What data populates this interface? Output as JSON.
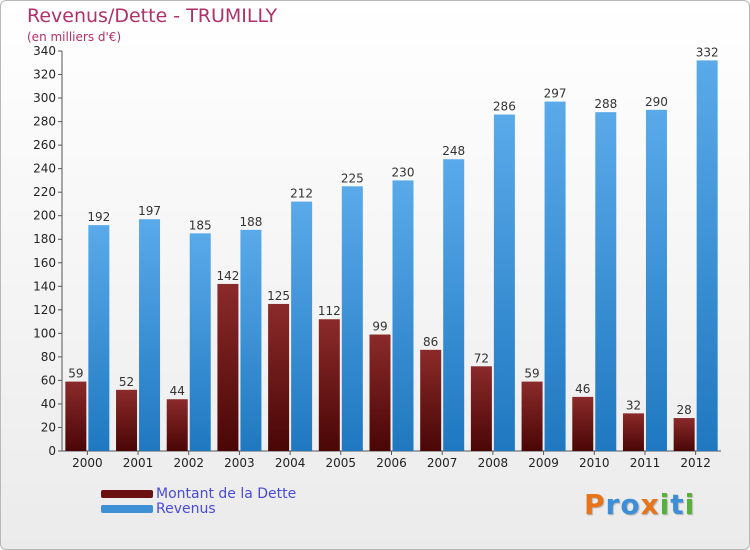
{
  "title": "Revenus/Dette - TRUMILLY",
  "subtitle": "(en milliers d'€)",
  "colors": {
    "dette_top": "#8b2a2a",
    "dette_bottom": "#4a0606",
    "revenus_top": "#5aaaea",
    "revenus_bottom": "#1f78c0",
    "title": "#b0306a",
    "legend_text": "#4a4ad8"
  },
  "legend": {
    "items": [
      {
        "label": "Montant de la Dette",
        "swatch": "#6a1010"
      },
      {
        "label": "Revenus",
        "swatch": "#3d8fd6"
      }
    ]
  },
  "logo": {
    "text": "Proxiti",
    "letters": [
      {
        "ch": "P",
        "color": "#e8741a"
      },
      {
        "ch": "r",
        "color": "#3c8fd6"
      },
      {
        "ch": "o",
        "color": "#3c8fd6"
      },
      {
        "ch": "x",
        "color": "#e8741a"
      },
      {
        "ch": "i",
        "color": "#58b03a"
      },
      {
        "ch": "t",
        "color": "#3c8fd6"
      },
      {
        "ch": "i",
        "color": "#58b03a"
      }
    ]
  },
  "chart_data": {
    "type": "bar",
    "title": "Revenus/Dette - TRUMILLY",
    "ylabel": "(en milliers d'€)",
    "xlabel": "",
    "ylim": [
      0,
      340
    ],
    "yticks": [
      0,
      20,
      40,
      60,
      80,
      100,
      120,
      140,
      160,
      180,
      200,
      220,
      240,
      260,
      280,
      300,
      320,
      340
    ],
    "categories": [
      "2000",
      "2001",
      "2002",
      "2003",
      "2004",
      "2005",
      "2006",
      "2007",
      "2008",
      "2009",
      "2010",
      "2011",
      "2012"
    ],
    "series": [
      {
        "name": "Montant de la Dette",
        "values": [
          59,
          52,
          44,
          142,
          125,
          112,
          99,
          86,
          72,
          59,
          46,
          32,
          28
        ]
      },
      {
        "name": "Revenus",
        "values": [
          192,
          197,
          185,
          188,
          212,
          225,
          230,
          248,
          286,
          297,
          288,
          290,
          332
        ]
      }
    ],
    "legend_position": "bottom-left",
    "grid": false
  }
}
